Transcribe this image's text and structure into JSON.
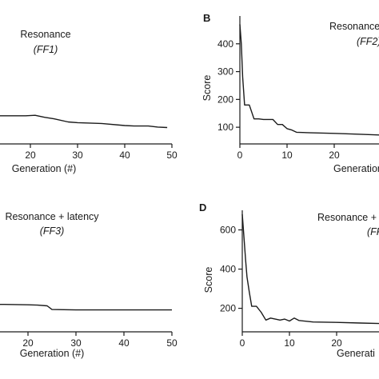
{
  "chart_data": [
    {
      "type": "line",
      "panel_letter": "",
      "title": "Resonance",
      "subtitle": "(FF1)",
      "xlabel": "Generation (#)",
      "ylabel": "",
      "xlim": [
        0,
        50
      ],
      "ylim": [
        0,
        500
      ],
      "x_ticks": [
        20,
        30,
        40,
        50
      ],
      "y_ticks": [],
      "grid": false,
      "series": [
        {
          "x": [
            0,
            10,
            19,
            21,
            23,
            25,
            28,
            30,
            35,
            40,
            42,
            45,
            47,
            49
          ],
          "y": [
            110,
            110,
            110,
            112,
            104,
            98,
            86,
            83,
            80,
            72,
            70,
            70,
            66,
            64
          ]
        }
      ]
    },
    {
      "type": "line",
      "panel_letter": "B",
      "title": "Resonance",
      "subtitle": "(FF2)",
      "xlabel": "Generation",
      "ylabel": "Score",
      "xlim": [
        0,
        50
      ],
      "ylim": [
        40,
        500
      ],
      "x_ticks": [
        0,
        10,
        20
      ],
      "y_ticks": [
        100,
        200,
        300,
        400
      ],
      "grid": false,
      "series": [
        {
          "x": [
            0,
            0.3,
            0.6,
            1,
            2,
            3,
            4,
            5,
            6,
            7,
            8,
            9,
            10,
            11,
            12,
            15,
            20,
            25,
            30,
            40,
            50
          ],
          "y": [
            470,
            400,
            280,
            180,
            180,
            130,
            130,
            128,
            128,
            128,
            110,
            110,
            95,
            90,
            82,
            80,
            78,
            75,
            72,
            70,
            70
          ]
        }
      ]
    },
    {
      "type": "line",
      "panel_letter": "",
      "title": "Resonance + latency",
      "subtitle": "(FF3)",
      "xlabel": "Generation (#)",
      "ylabel": "",
      "xlim": [
        0,
        50
      ],
      "ylim": [
        0,
        700
      ],
      "x_ticks": [
        20,
        30,
        40,
        50
      ],
      "y_ticks": [],
      "grid": false,
      "series": [
        {
          "x": [
            0,
            10,
            15,
            20,
            22,
            24,
            25,
            30,
            40,
            50
          ],
          "y": [
            150,
            150,
            150,
            148,
            146,
            142,
            122,
            120,
            120,
            120
          ]
        }
      ]
    },
    {
      "type": "line",
      "panel_letter": "D",
      "title": "Resonance +",
      "subtitle": "(FF",
      "xlabel": "Generati",
      "ylabel": "Score",
      "xlim": [
        0,
        50
      ],
      "ylim": [
        80,
        700
      ],
      "x_ticks": [
        0,
        10,
        20
      ],
      "y_ticks": [
        200,
        400,
        600
      ],
      "grid": false,
      "series": [
        {
          "x": [
            0,
            0.3,
            0.7,
            1,
            1.5,
            2,
            3,
            4,
            5,
            6,
            7,
            8,
            9,
            10,
            11,
            12,
            15,
            20,
            25,
            30,
            50
          ],
          "y": [
            680,
            580,
            450,
            360,
            280,
            210,
            210,
            180,
            140,
            150,
            145,
            140,
            145,
            135,
            150,
            138,
            130,
            128,
            125,
            122,
            120
          ]
        }
      ]
    }
  ]
}
